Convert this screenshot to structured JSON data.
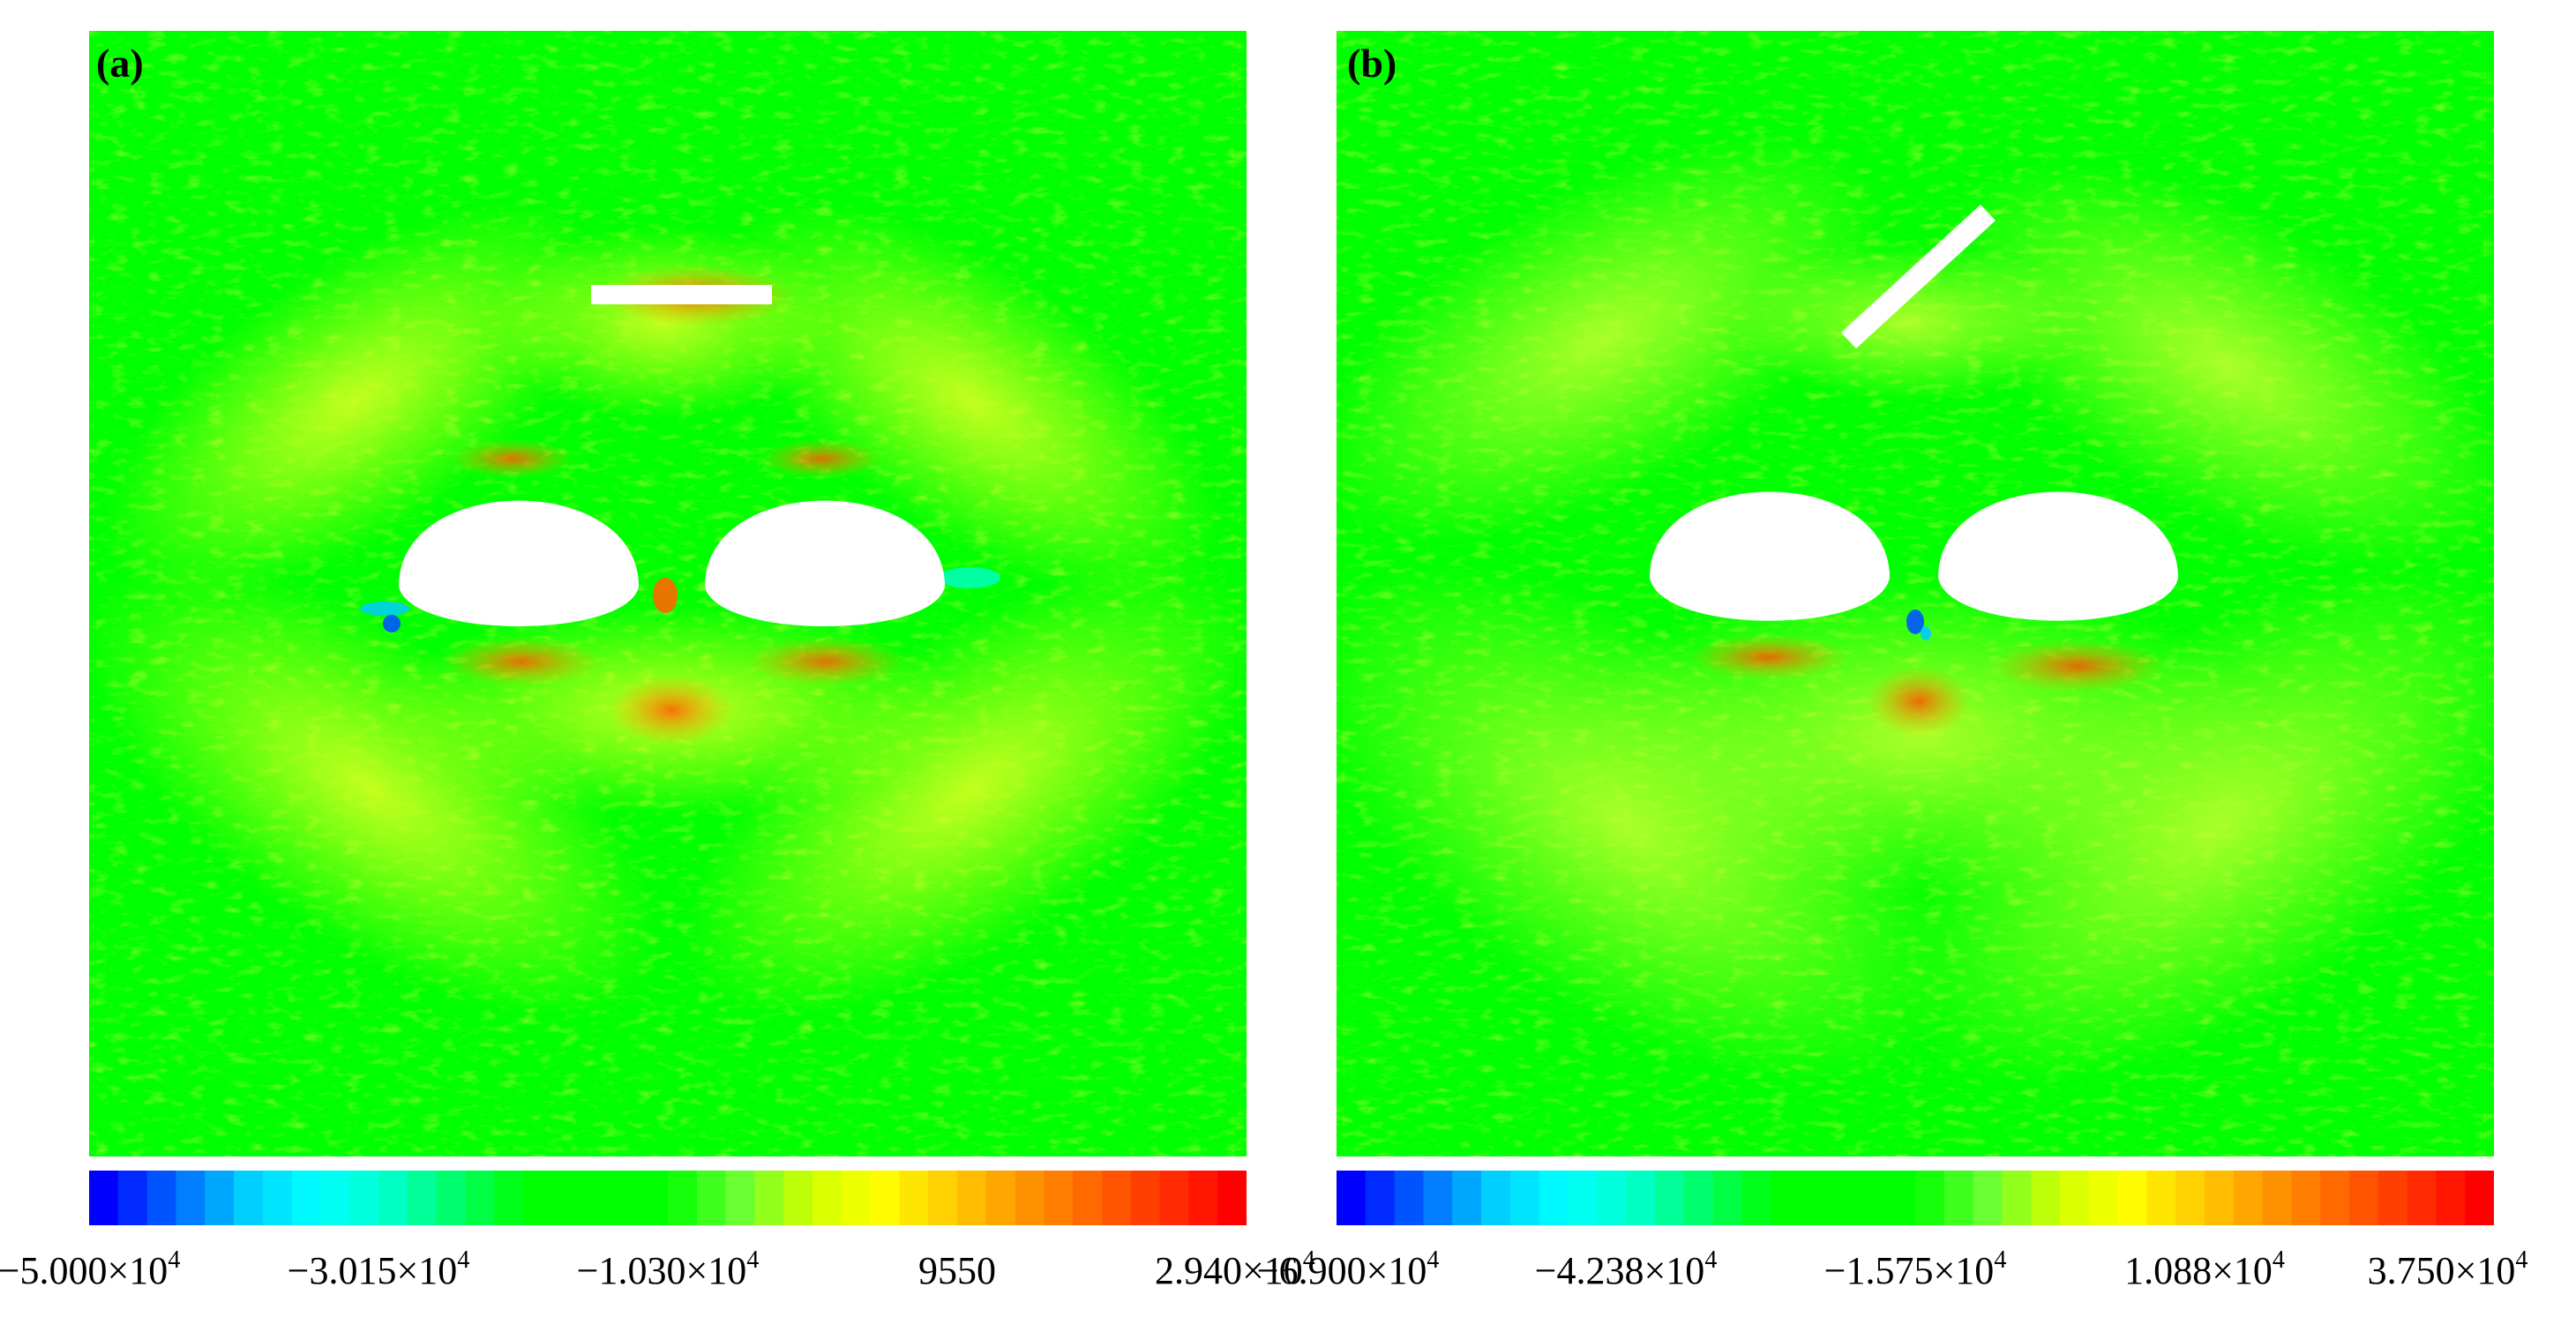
{
  "panels": [
    {
      "label": "(a)",
      "colorbar_ticks": [
        {
          "mant": "−5.000×10",
          "exp": "4"
        },
        {
          "mant": "−3.015×10",
          "exp": "4"
        },
        {
          "mant": "−1.030×10",
          "exp": "4"
        },
        {
          "mant": "9550",
          "exp": ""
        },
        {
          "mant": "2.940×10",
          "exp": "4"
        }
      ]
    },
    {
      "label": "(b)",
      "colorbar_ticks": [
        {
          "mant": "−6.900×10",
          "exp": "4"
        },
        {
          "mant": "−4.238×10",
          "exp": "4"
        },
        {
          "mant": "−1.575×10",
          "exp": "4"
        },
        {
          "mant": "1.088×10",
          "exp": "4"
        },
        {
          "mant": "3.750×10",
          "exp": "4"
        }
      ]
    }
  ],
  "colors": {
    "field_green": "#00ff00",
    "colormap": [
      "#0000ff",
      "#0066ff",
      "#00ccff",
      "#00ffff",
      "#00ffcc",
      "#00ff66",
      "#00ff00",
      "#00ff00",
      "#00ff00",
      "#66ff33",
      "#ccff00",
      "#ffff00",
      "#ffcc00",
      "#ff9900",
      "#ff6600",
      "#ff3300",
      "#ff0000"
    ]
  }
}
